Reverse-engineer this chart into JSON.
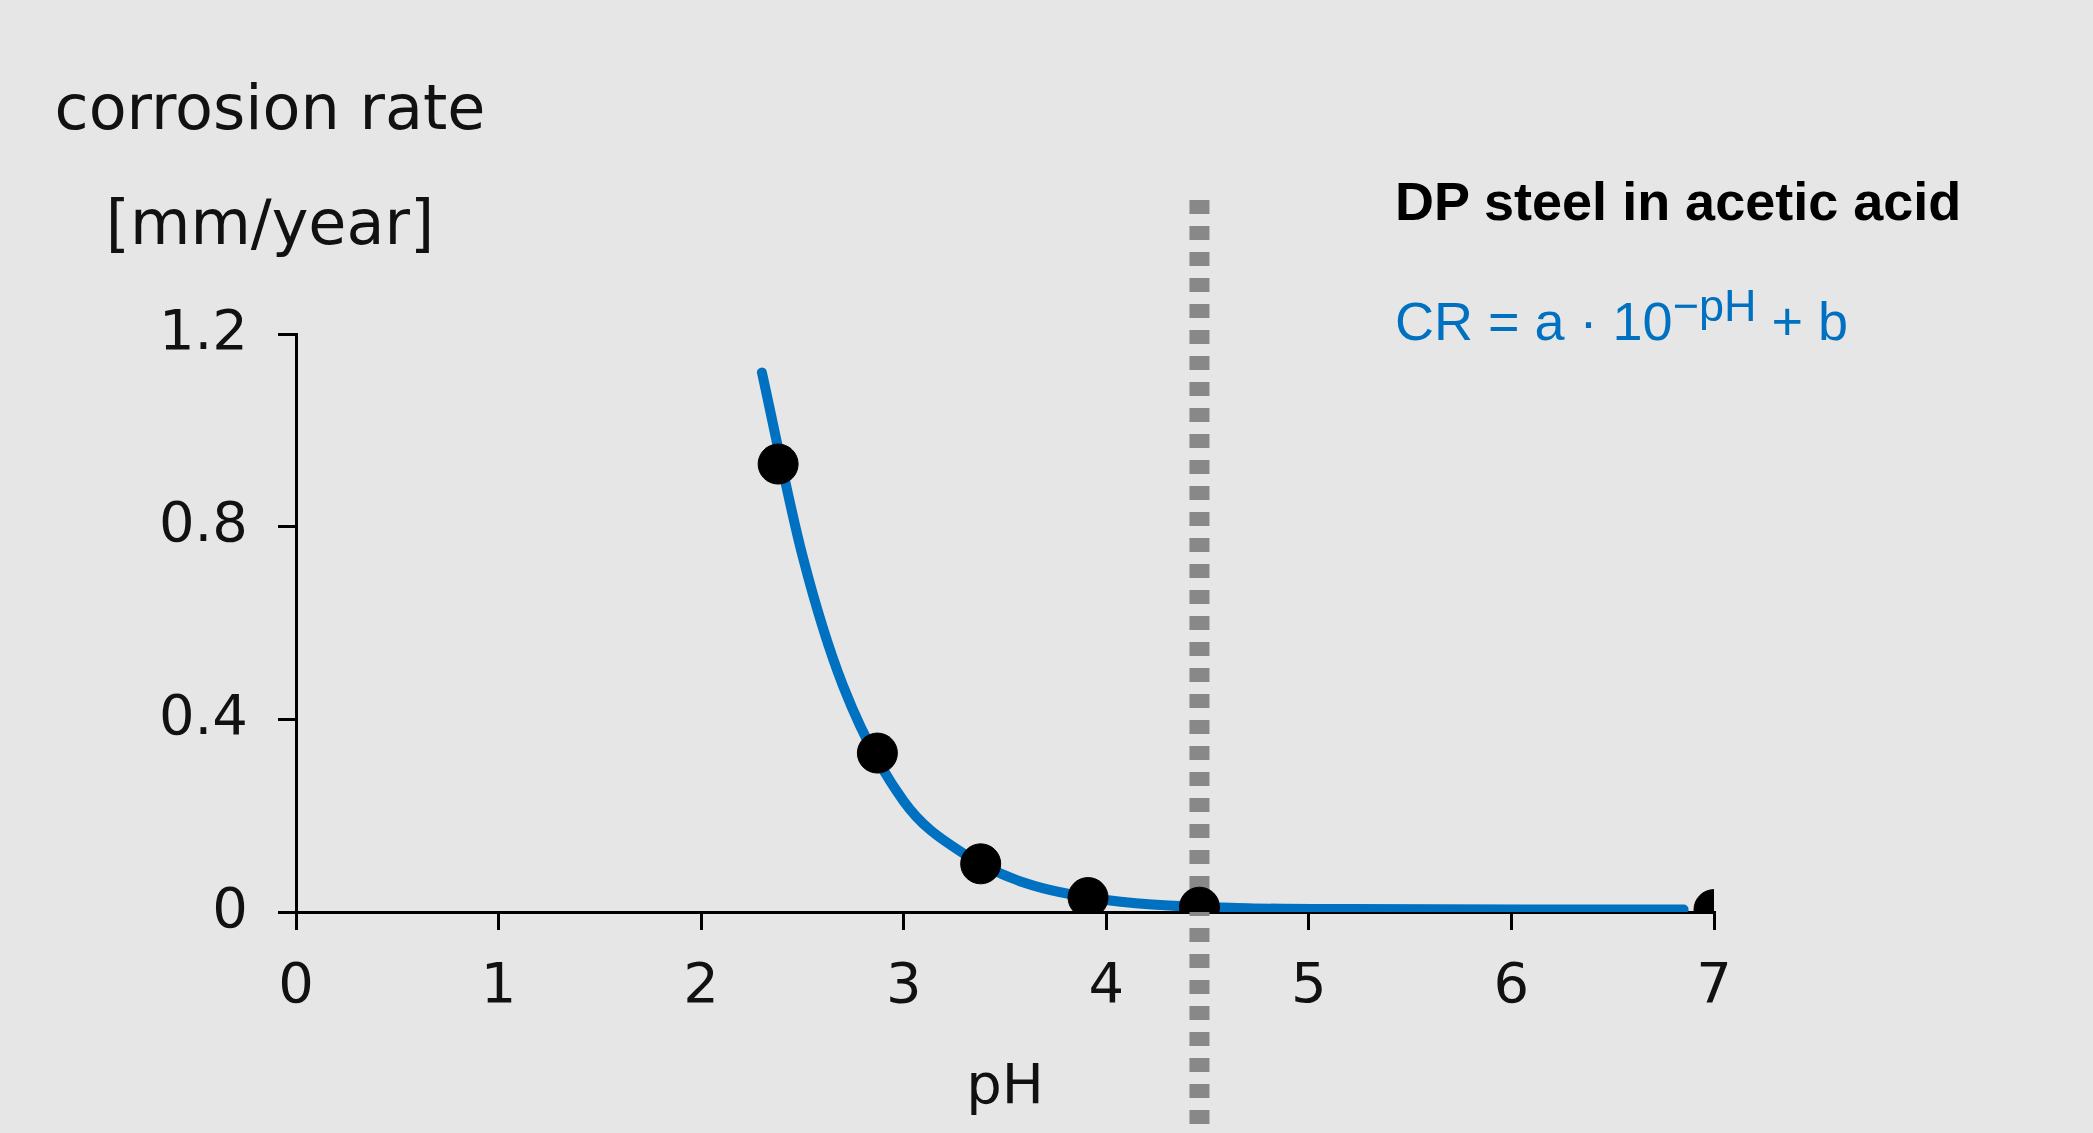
{
  "chart_data": {
    "type": "scatter",
    "ylabel": "corrosion rate [mm/year]",
    "xlabel": "pH",
    "xlim": [
      0,
      7
    ],
    "xticks": [
      0,
      1,
      2,
      3,
      4,
      5,
      6,
      7
    ],
    "ylim": [
      0,
      1.2
    ],
    "yticks": [
      0,
      0.4,
      0.8,
      1.2
    ],
    "grid": false,
    "legend": false,
    "series": [
      {
        "type": "line",
        "color": "#0070c0",
        "marker": "none",
        "line_style": "solid",
        "x": [
          2.3,
          2.5,
          2.7,
          3.0,
          3.3,
          3.6,
          4.0,
          4.7,
          5.2,
          6.85
        ],
        "values": [
          1.12,
          0.74,
          0.47,
          0.23,
          0.12,
          0.06,
          0.025,
          0.008,
          0.006,
          0.005
        ]
      },
      {
        "color": "#000000",
        "marker": "circle",
        "x": [
          2.38,
          2.87,
          3.38,
          3.91,
          4.46,
          7.0
        ],
        "values": [
          0.93,
          0.33,
          0.1,
          0.03,
          0.01,
          0.005
        ]
      }
    ],
    "ref_lines": [
      {
        "axis": "x",
        "value": 4.46,
        "color": "#888888",
        "line_style": "dotted"
      }
    ],
    "annotations": [
      "DP steel in acetic acid",
      "CR = a · 10$^{−pH}$ + b"
    ]
  }
}
